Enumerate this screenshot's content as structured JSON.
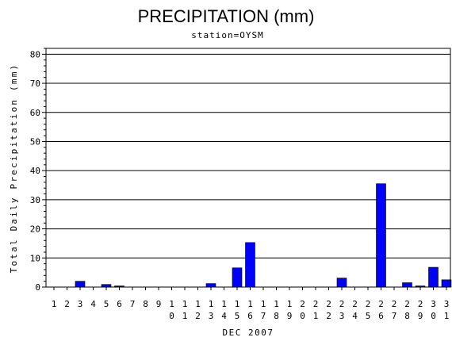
{
  "chart_data": {
    "type": "bar",
    "title": "PRECIPITATION (mm)",
    "subtitle": "station=OYSM",
    "xlabel": "DEC 2007",
    "ylabel": "Total Daily Precipitation (mm)",
    "ylim": [
      0,
      82
    ],
    "yticks": [
      0,
      10,
      20,
      30,
      40,
      50,
      60,
      70,
      80
    ],
    "grid": true,
    "categories": [
      "1",
      "2",
      "3",
      "4",
      "5",
      "6",
      "7",
      "8",
      "9",
      "10",
      "11",
      "12",
      "13",
      "14",
      "15",
      "16",
      "17",
      "18",
      "19",
      "20",
      "21",
      "22",
      "23",
      "24",
      "25",
      "26",
      "27",
      "28",
      "29",
      "30",
      "31"
    ],
    "values": [
      0,
      0,
      2.0,
      0,
      0.9,
      0.4,
      0,
      0,
      0,
      0,
      0,
      0,
      1.2,
      0,
      6.6,
      15.3,
      0,
      0,
      0,
      0,
      0,
      0,
      3.1,
      0,
      0,
      35.5,
      0,
      1.5,
      0.4,
      6.8,
      2.5
    ],
    "bar_color": "#0000ff"
  }
}
